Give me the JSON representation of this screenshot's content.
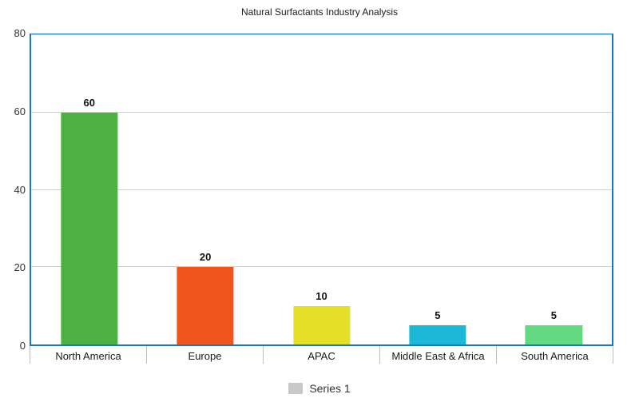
{
  "title": "Natural Surfactants Industry Analysis",
  "chart_data": {
    "type": "bar",
    "title": "Natural Surfactants Industry Analysis",
    "categories": [
      "North America",
      "Europe",
      "APAC",
      "Middle East & Africa",
      "South America"
    ],
    "values": [
      60,
      20,
      10,
      5,
      5
    ],
    "bar_colors": [
      "#4cb140",
      "#f0531c",
      "#e4e029",
      "#1db8d8",
      "#63da81"
    ],
    "xlabel": "",
    "ylabel": "",
    "ylim": [
      0,
      80
    ],
    "yticks": [
      0,
      20,
      40,
      60,
      80
    ],
    "grid": true,
    "legend": {
      "label": "Series 1",
      "swatch_color": "#c9c9c9",
      "position": "bottom"
    }
  },
  "colors": {
    "plot_border": "#1778c8",
    "gridline": "#d0d0d0",
    "tick": "#c0c0c0",
    "text": "#1a1a1a"
  }
}
